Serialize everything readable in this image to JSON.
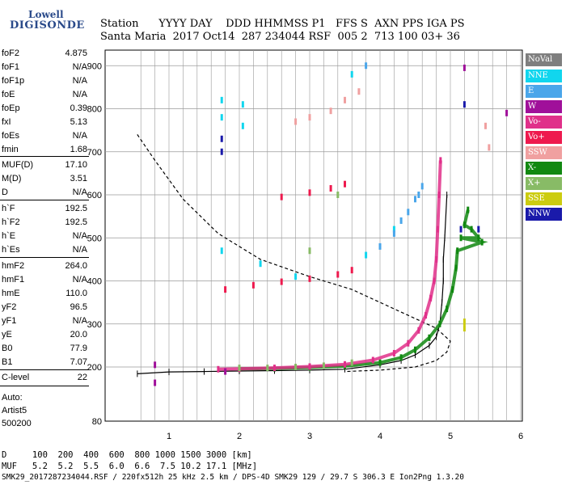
{
  "logo": {
    "company": "Lowell",
    "brand": "DIGISONDE"
  },
  "header": {
    "labels": "Station      YYYY DAY    DDD HHMMSS P1   FFS S  AXN PPS IGA PS",
    "values": "Santa Maria  2017 Oct14  287 234044 RSF  005 2  713 100 03+ 36"
  },
  "params_group1": [
    {
      "name": "foF2",
      "value": "4.875"
    },
    {
      "name": "foF1",
      "value": "N/A"
    },
    {
      "name": "foF1p",
      "value": "N/A"
    },
    {
      "name": "foE",
      "value": "N/A"
    },
    {
      "name": "foEp",
      "value": "0.39"
    },
    {
      "name": "fxI",
      "value": "5.13"
    },
    {
      "name": "foEs",
      "value": "N/A"
    },
    {
      "name": "fmin",
      "value": "1.68"
    }
  ],
  "params_group2": [
    {
      "name": "MUF(D)",
      "value": "17.10"
    },
    {
      "name": "M(D)",
      "value": "3.51"
    },
    {
      "name": "D",
      "value": "N/A"
    }
  ],
  "params_group3": [
    {
      "name": "h`F",
      "value": "192.5"
    },
    {
      "name": "h`F2",
      "value": "192.5"
    },
    {
      "name": "h`E",
      "value": "N/A"
    },
    {
      "name": "h`Es",
      "value": "N/A"
    }
  ],
  "params_group4": [
    {
      "name": "hmF2",
      "value": "264.0"
    },
    {
      "name": "hmF1",
      "value": "N/A"
    },
    {
      "name": "hmE",
      "value": "110.0"
    },
    {
      "name": "yF2",
      "value": "96.5"
    },
    {
      "name": "yF1",
      "value": "N/A"
    },
    {
      "name": "yE",
      "value": "20.0"
    },
    {
      "name": "B0",
      "value": "77.9"
    },
    {
      "name": "B1",
      "value": "7.07"
    }
  ],
  "clevel": {
    "name": "C-level",
    "value": "22"
  },
  "auto": {
    "line1": "Auto:",
    "line2": "Artist5",
    "line3": "500200"
  },
  "legend": [
    {
      "label": "NoVal",
      "color": "#7f7f7f"
    },
    {
      "label": "NNE",
      "color": "#11d6ee"
    },
    {
      "label": "E",
      "color": "#4aa6ea"
    },
    {
      "label": "W",
      "color": "#a0109a"
    },
    {
      "label": "Vo-",
      "color": "#e0308a"
    },
    {
      "label": "Vo+",
      "color": "#ee1a4e"
    },
    {
      "label": "SSW",
      "color": "#f0a0a0"
    },
    {
      "label": "X-",
      "color": "#118811"
    },
    {
      "label": "X+",
      "color": "#88bb66"
    },
    {
      "label": "SSE",
      "color": "#cccc10"
    },
    {
      "label": "NNW",
      "color": "#1a1aaa"
    }
  ],
  "footer": {
    "d_row": "D     100  200  400  600  800 1000 1500 3000 [km]",
    "muf_row": "MUF   5.2  5.2  5.5  6.0  6.6  7.5 10.2 17.1 [MHz]",
    "info": "SMK29_2017287234044.RSF / 220fx512h 25 kHz 2.5 km / DPS-4D SMK29 129 / 29.7 S 306.3 E Ion2Png 1.3.20"
  },
  "chart_data": {
    "type": "scatter",
    "xlabel": "",
    "ylabel": "",
    "xlim": [
      0.5,
      6.5
    ],
    "ylim": [
      80,
      900
    ],
    "x_ticks": [
      1,
      2,
      3,
      4,
      5,
      6
    ],
    "y_ticks": [
      80,
      200,
      300,
      400,
      500,
      600,
      700,
      800,
      900
    ],
    "grid": true,
    "legend_position": "right",
    "series": [
      {
        "name": "X-",
        "color": "#118811",
        "points": [
          [
            2.0,
            196
          ],
          [
            2.5,
            197
          ],
          [
            3.0,
            199
          ],
          [
            3.5,
            202
          ],
          [
            4.0,
            210
          ],
          [
            4.3,
            222
          ],
          [
            4.5,
            240
          ],
          [
            4.7,
            268
          ],
          [
            4.85,
            300
          ],
          [
            4.95,
            335
          ],
          [
            5.03,
            380
          ],
          [
            5.08,
            430
          ],
          [
            5.1,
            470
          ],
          [
            5.15,
            500
          ],
          [
            5.2,
            530
          ],
          [
            5.25,
            565
          ],
          [
            5.3,
            520
          ],
          [
            5.4,
            500
          ],
          [
            5.45,
            490
          ]
        ]
      },
      {
        "name": "Vo-",
        "color": "#e0308a",
        "points": [
          [
            1.7,
            195
          ],
          [
            2.0,
            196
          ],
          [
            2.5,
            198
          ],
          [
            3.0,
            201
          ],
          [
            3.5,
            206
          ],
          [
            3.9,
            216
          ],
          [
            4.2,
            232
          ],
          [
            4.4,
            255
          ],
          [
            4.55,
            285
          ],
          [
            4.65,
            320
          ],
          [
            4.72,
            360
          ],
          [
            4.77,
            400
          ],
          [
            4.8,
            450
          ],
          [
            4.82,
            520
          ],
          [
            4.84,
            600
          ],
          [
            4.86,
            680
          ]
        ]
      },
      {
        "name": "Vo+",
        "color": "#ee1a4e",
        "points": [
          [
            1.8,
            380
          ],
          [
            2.2,
            390
          ],
          [
            2.6,
            398
          ],
          [
            3.0,
            405
          ],
          [
            3.4,
            415
          ],
          [
            3.6,
            425
          ],
          [
            2.6,
            595
          ],
          [
            3.0,
            605
          ],
          [
            3.3,
            615
          ],
          [
            3.5,
            625
          ]
        ]
      },
      {
        "name": "SSW",
        "color": "#f0a0a0",
        "points": [
          [
            2.8,
            770
          ],
          [
            3.0,
            780
          ],
          [
            3.3,
            795
          ],
          [
            3.5,
            820
          ],
          [
            3.7,
            840
          ],
          [
            5.5,
            760
          ],
          [
            5.55,
            710
          ]
        ]
      },
      {
        "name": "NNE",
        "color": "#11d6ee",
        "points": [
          [
            1.75,
            780
          ],
          [
            1.75,
            820
          ],
          [
            2.05,
            760
          ],
          [
            2.05,
            810
          ],
          [
            1.75,
            470
          ],
          [
            3.6,
            880
          ],
          [
            3.8,
            460
          ],
          [
            4.2,
            520
          ],
          [
            2.3,
            440
          ],
          [
            2.8,
            410
          ]
        ]
      },
      {
        "name": "E",
        "color": "#4aa6ea",
        "points": [
          [
            4.0,
            480
          ],
          [
            4.2,
            510
          ],
          [
            4.3,
            540
          ],
          [
            4.4,
            560
          ],
          [
            4.5,
            590
          ],
          [
            4.55,
            600
          ],
          [
            4.6,
            620
          ],
          [
            3.8,
            900
          ]
        ]
      },
      {
        "name": "W",
        "color": "#a0109a",
        "points": [
          [
            0.8,
            205
          ],
          [
            0.8,
            165
          ],
          [
            1.8,
            190
          ],
          [
            5.2,
            895
          ],
          [
            5.8,
            790
          ]
        ]
      },
      {
        "name": "X+",
        "color": "#88bb66",
        "points": [
          [
            2.0,
            198
          ],
          [
            2.4,
            198
          ],
          [
            2.8,
            200
          ],
          [
            3.2,
            203
          ],
          [
            3.6,
            210
          ],
          [
            3.0,
            470
          ],
          [
            3.4,
            600
          ]
        ]
      },
      {
        "name": "SSE",
        "color": "#cccc10",
        "points": [
          [
            5.2,
            290
          ],
          [
            5.2,
            305
          ]
        ]
      },
      {
        "name": "NNW",
        "color": "#1a1aaa",
        "points": [
          [
            1.75,
            700
          ],
          [
            1.75,
            730
          ],
          [
            5.15,
            520
          ],
          [
            5.2,
            810
          ],
          [
            5.4,
            520
          ]
        ]
      }
    ],
    "profile_curve": {
      "points": [
        [
          0.55,
          185
        ],
        [
          1.0,
          189
        ],
        [
          1.5,
          190
        ],
        [
          2.0,
          191
        ],
        [
          2.5,
          192
        ],
        [
          3.0,
          193
        ],
        [
          3.5,
          195
        ],
        [
          4.0,
          205
        ],
        [
          4.3,
          215
        ],
        [
          4.5,
          228
        ],
        [
          4.7,
          250
        ],
        [
          4.8,
          270
        ],
        [
          4.85,
          300
        ],
        [
          4.88,
          350
        ],
        [
          4.9,
          400
        ],
        [
          4.9,
          450
        ],
        [
          4.92,
          500
        ],
        [
          4.95,
          600
        ]
      ]
    },
    "model_curve": {
      "points": [
        [
          0.55,
          740
        ],
        [
          0.8,
          680
        ],
        [
          1.2,
          590
        ],
        [
          1.7,
          510
        ],
        [
          2.3,
          450
        ],
        [
          3.0,
          410
        ],
        [
          3.6,
          380
        ],
        [
          4.0,
          350
        ],
        [
          4.4,
          320
        ],
        [
          4.8,
          290
        ],
        [
          5.0,
          260
        ],
        [
          4.95,
          235
        ],
        [
          4.8,
          215
        ],
        [
          4.5,
          200
        ],
        [
          4.0,
          193
        ],
        [
          3.5,
          190
        ]
      ]
    }
  }
}
